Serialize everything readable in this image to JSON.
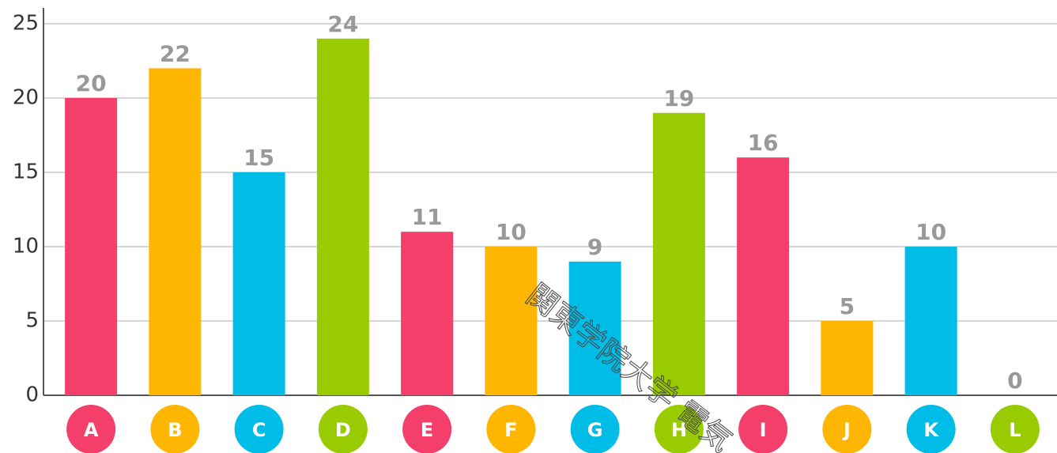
{
  "chart_data": {
    "type": "bar",
    "categories": [
      "A",
      "B",
      "C",
      "D",
      "E",
      "F",
      "G",
      "H",
      "I",
      "J",
      "K",
      "L"
    ],
    "values": [
      20,
      22,
      15,
      24,
      11,
      10,
      9,
      19,
      16,
      5,
      10,
      0
    ],
    "colors": [
      "#f43f6a",
      "#ffb600",
      "#00bde8",
      "#99cc00",
      "#f43f6a",
      "#ffb600",
      "#00bde8",
      "#99cc00",
      "#f43f6a",
      "#ffb600",
      "#00bde8",
      "#99cc00"
    ],
    "ylim": [
      0,
      25
    ],
    "yticks": [
      0,
      5,
      10,
      15,
      20,
      25
    ],
    "grid": true
  },
  "watermark": "関東学院大学 電気"
}
